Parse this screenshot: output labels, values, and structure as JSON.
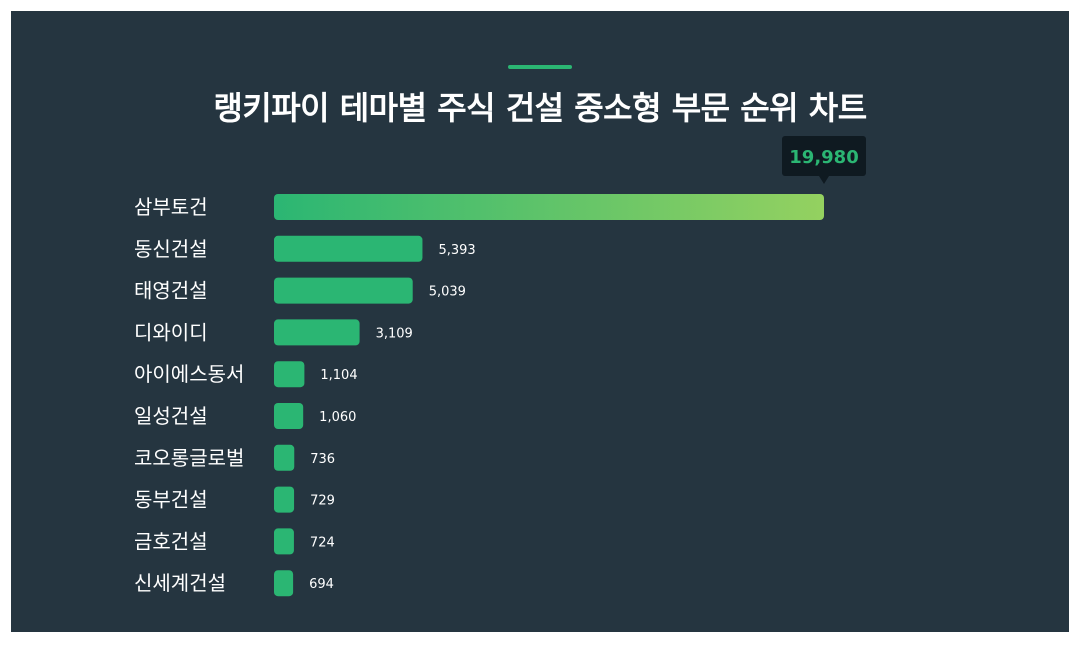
{
  "title": "랭키파이 테마별 주식 건설 중소형 부문 순위 차트",
  "colors": {
    "background": "#253540",
    "accent": "#2bb673",
    "bar_start": "#2bb673",
    "bar_end": "#94d160",
    "tooltip_bg": "#0f1a21",
    "tooltip_text": "#2bb673"
  },
  "chart_data": {
    "type": "bar",
    "orientation": "horizontal",
    "categories": [
      "삼부토건",
      "동신건설",
      "태영건설",
      "디와이디",
      "아이에스동서",
      "일성건설",
      "코오롱글로벌",
      "동부건설",
      "금호건설",
      "신세계건설"
    ],
    "values": [
      19980,
      5393,
      5039,
      3109,
      1104,
      1060,
      736,
      729,
      724,
      694
    ],
    "value_labels": [
      "19,980",
      "5,393",
      "5,039",
      "3,109",
      "1,104",
      "1,060",
      "736",
      "729",
      "724",
      "694"
    ],
    "highlight_index": 0,
    "xlim": [
      0,
      19980
    ],
    "grid": false,
    "legend": "none"
  }
}
